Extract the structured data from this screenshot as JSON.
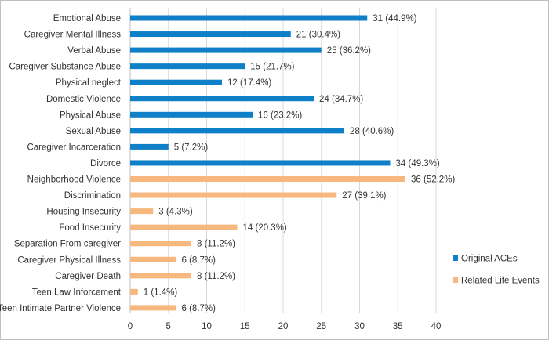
{
  "chart_data": {
    "type": "bar",
    "orientation": "horizontal",
    "title": "",
    "xlabel": "",
    "ylabel": "",
    "xlim": [
      0,
      40
    ],
    "xticks": [
      0,
      5,
      10,
      15,
      20,
      25,
      30,
      35,
      40
    ],
    "grid": true,
    "legend_position": "right",
    "series": [
      {
        "name": "Original ACEs",
        "color": "#0f7fc7"
      },
      {
        "name": "Related Life Events",
        "color": "#f6b87c"
      }
    ],
    "bars": [
      {
        "category": "Emotional Abuse",
        "value": 31,
        "label": "31 (44.9%)",
        "series": 0
      },
      {
        "category": "Caregiver Mental Illness",
        "value": 21,
        "label": "21 (30.4%)",
        "series": 0
      },
      {
        "category": "Verbal Abuse",
        "value": 25,
        "label": "25 (36.2%)",
        "series": 0
      },
      {
        "category": "Caregiver Substance Abuse",
        "value": 15,
        "label": "15 (21.7%)",
        "series": 0
      },
      {
        "category": "Physical neglect",
        "value": 12,
        "label": "12 (17.4%)",
        "series": 0
      },
      {
        "category": "Domestic Violence",
        "value": 24,
        "label": "24 (34.7%)",
        "series": 0
      },
      {
        "category": "Physical Abuse",
        "value": 16,
        "label": "16 (23.2%)",
        "series": 0
      },
      {
        "category": "Sexual Abuse",
        "value": 28,
        "label": "28 (40.6%)",
        "series": 0
      },
      {
        "category": "Caregiver Incarceration",
        "value": 5,
        "label": "5 (7.2%)",
        "series": 0
      },
      {
        "category": "Divorce",
        "value": 34,
        "label": "34 (49.3%)",
        "series": 0
      },
      {
        "category": "Neighborhood Violence",
        "value": 36,
        "label": "36 (52.2%)",
        "series": 1
      },
      {
        "category": "Discrimination",
        "value": 27,
        "label": "27 (39.1%)",
        "series": 1
      },
      {
        "category": "Housing Insecurity",
        "value": 3,
        "label": "3 (4.3%)",
        "series": 1
      },
      {
        "category": "Food Insecurity",
        "value": 14,
        "label": "14 (20.3%)",
        "series": 1
      },
      {
        "category": "Separation From caregiver",
        "value": 8,
        "label": "8 (11.2%)",
        "series": 1
      },
      {
        "category": "Caregiver Physical Illness",
        "value": 6,
        "label": "6 (8.7%)",
        "series": 1
      },
      {
        "category": "Caregiver Death",
        "value": 8,
        "label": "8 (11.2%)",
        "series": 1
      },
      {
        "category": "Teen Law Inforcement",
        "value": 1,
        "label": "1 (1.4%)",
        "series": 1
      },
      {
        "category": "Teen Intimate Partner Violence",
        "value": 6,
        "label": "6 (8.7%)",
        "series": 1
      }
    ]
  }
}
